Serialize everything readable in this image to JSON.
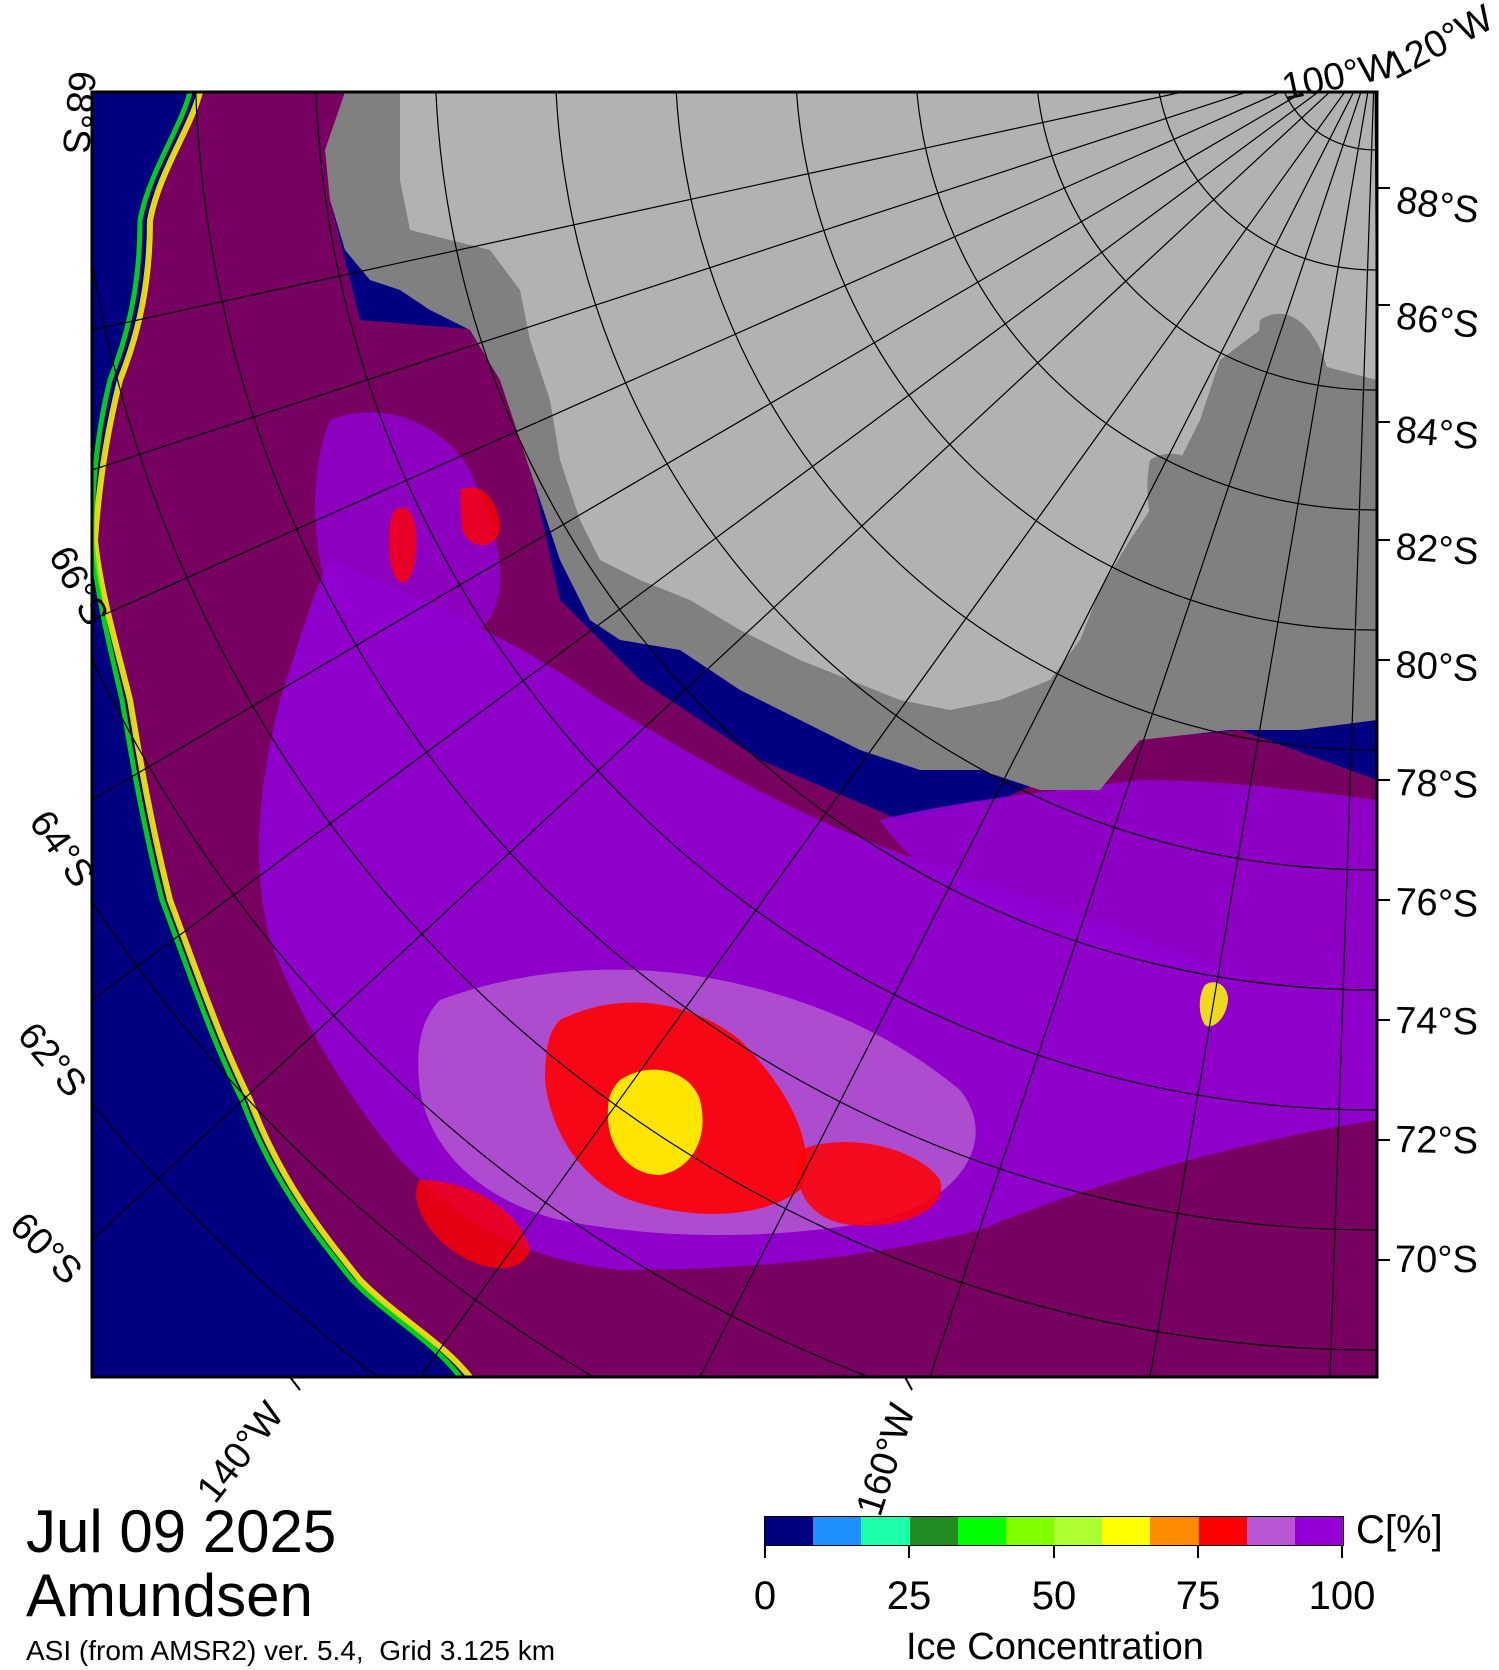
{
  "date": "Jul 09 2025",
  "region": "Amundsen",
  "source": "ASI (from AMSR2) ver. 5.4,  Grid 3.125 km",
  "colorbar": {
    "unit": "C[%]",
    "title": "Ice Concentration",
    "ticks": [
      "0",
      "25",
      "50",
      "75",
      "100"
    ],
    "colors": [
      "#00007f",
      "#1e90ff",
      "#1effaa",
      "#228b22",
      "#00ff00",
      "#7fff00",
      "#adff2f",
      "#ffff00",
      "#ff8c00",
      "#ff0000",
      "#ba55d3",
      "#9400d3"
    ]
  },
  "map_colors": {
    "open_water": "#000080",
    "land_ice_shelf": "#b2b2b2",
    "land_coast": "#808080",
    "ice_100": "#780060",
    "ice_95": "#9000d0",
    "ice_90": "#b050d0",
    "ice_85": "#ff0000",
    "ice_75": "#ffff00",
    "ice_60": "#80ff00",
    "ice_45": "#00ff00",
    "ice_30": "#1effaa"
  },
  "latitude_labels_right": [
    "88°S",
    "86°S",
    "84°S",
    "82°S",
    "80°S",
    "78°S",
    "76°S",
    "74°S",
    "72°S",
    "70°S"
  ],
  "latitude_labels_left": [
    "68°S",
    "66°S",
    "64°S",
    "62°S",
    "60°S"
  ],
  "longitude_labels": [
    "100°W",
    "120°W",
    "140°W",
    "160°W"
  ]
}
